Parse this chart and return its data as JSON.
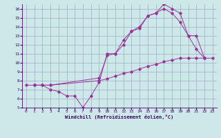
{
  "xlabel": "Windchill (Refroidissement éolien,°C)",
  "bg_color": "#cce8e8",
  "grid_color": "#9999bb",
  "line_color": "#993399",
  "xlim": [
    -0.5,
    23.5
  ],
  "ylim": [
    5,
    16.5
  ],
  "xticks": [
    0,
    1,
    2,
    3,
    4,
    5,
    6,
    7,
    8,
    9,
    10,
    11,
    12,
    13,
    14,
    15,
    16,
    17,
    18,
    19,
    20,
    21,
    22,
    23
  ],
  "yticks": [
    5,
    6,
    7,
    8,
    9,
    10,
    11,
    12,
    13,
    14,
    15,
    16
  ],
  "line1_x": [
    0,
    1,
    2,
    3,
    9,
    10,
    11,
    12,
    13,
    14,
    15,
    16,
    17,
    18,
    19,
    20,
    21,
    22,
    23
  ],
  "line1_y": [
    7.5,
    7.5,
    7.5,
    7.5,
    8.0,
    8.2,
    8.5,
    8.8,
    9.0,
    9.3,
    9.6,
    9.8,
    10.1,
    10.3,
    10.5,
    10.5,
    10.5,
    10.5,
    10.5
  ],
  "line2_x": [
    1,
    2,
    3,
    4,
    5,
    6,
    7,
    8,
    9,
    10,
    11,
    12,
    13,
    14,
    15,
    16,
    17,
    18,
    19,
    20,
    21,
    22
  ],
  "line2_y": [
    7.5,
    7.5,
    7.0,
    6.8,
    6.3,
    6.3,
    5.0,
    6.3,
    7.8,
    11.0,
    11.0,
    12.5,
    13.5,
    13.8,
    15.2,
    15.5,
    16.5,
    16.0,
    15.5,
    13.0,
    13.0,
    10.5
  ],
  "line3_x": [
    1,
    2,
    3,
    9,
    10,
    11,
    12,
    13,
    14,
    15,
    16,
    17,
    18,
    19,
    20,
    21,
    22
  ],
  "line3_y": [
    7.5,
    7.5,
    7.5,
    8.3,
    10.8,
    11.0,
    12.0,
    13.5,
    14.0,
    15.2,
    15.5,
    16.0,
    15.5,
    14.5,
    13.0,
    11.5,
    10.5
  ]
}
